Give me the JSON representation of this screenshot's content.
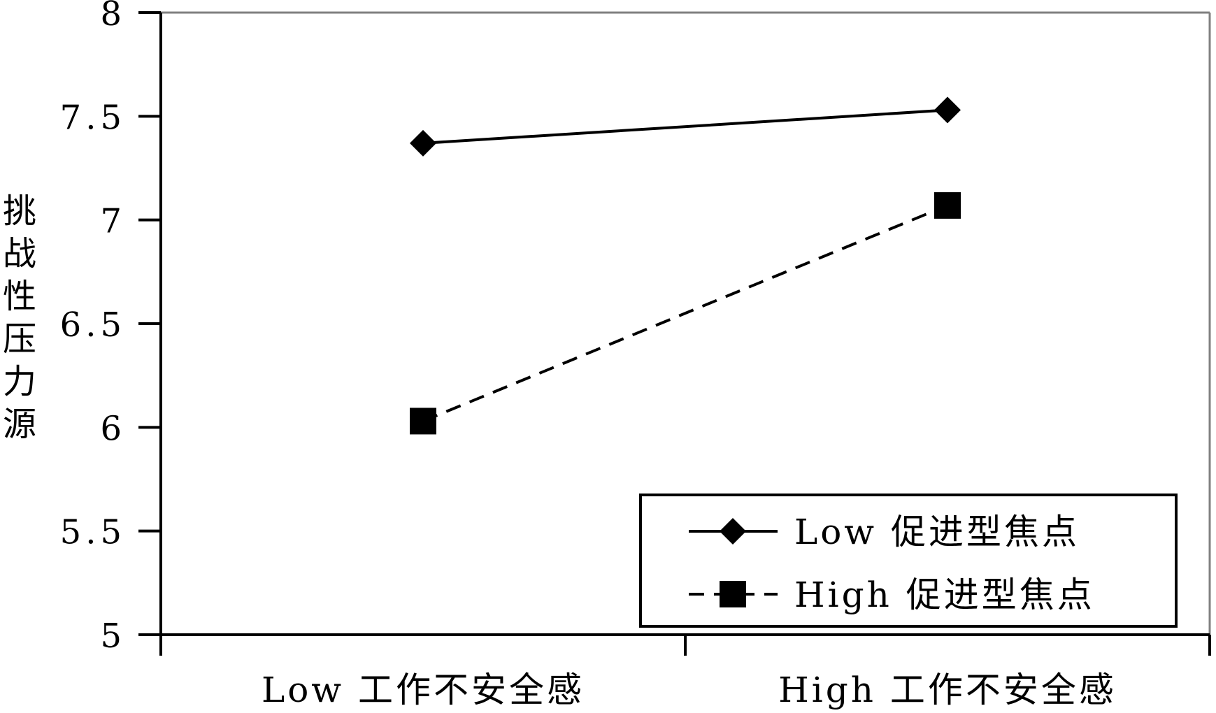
{
  "chart_data": {
    "type": "line",
    "title": "",
    "xlabel": "",
    "ylabel": "挑战性压力源",
    "categories": [
      "Low 工作不安全感",
      "High 工作不安全感"
    ],
    "ylim": [
      5,
      8
    ],
    "yticks": [
      "5",
      "5.5",
      "6",
      "6.5",
      "7",
      "7.5",
      "8"
    ],
    "grid": false,
    "legend_position": "bottom-right",
    "series": [
      {
        "name": "Low 促进型焦点",
        "values": [
          7.37,
          7.53
        ],
        "marker": "diamond",
        "line_style": "solid",
        "color": "#000000"
      },
      {
        "name": "High 促进型焦点",
        "values": [
          6.03,
          7.07
        ],
        "marker": "square",
        "line_style": "dashed",
        "color": "#000000"
      }
    ]
  }
}
